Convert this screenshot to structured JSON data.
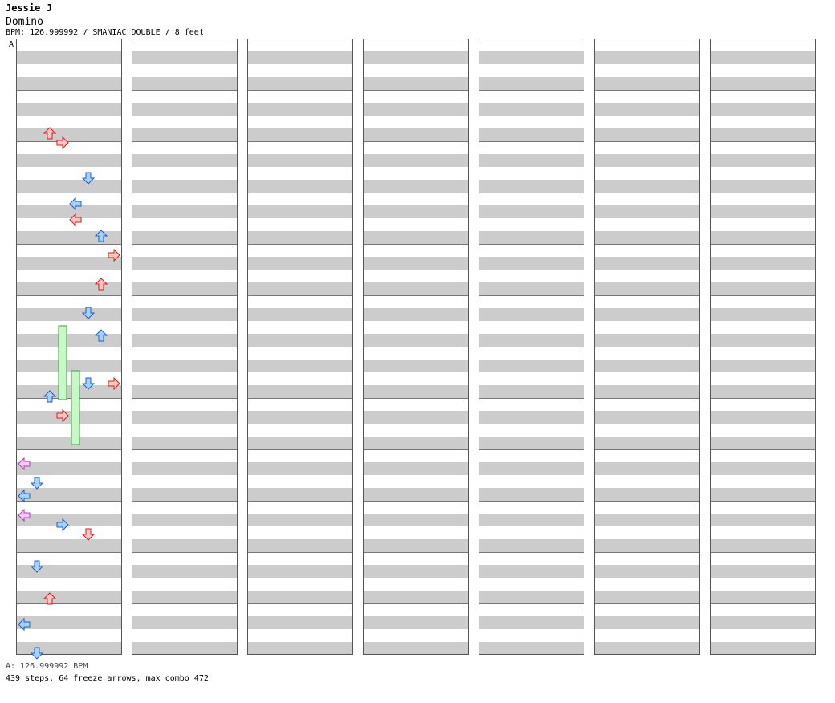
{
  "header": {
    "artist": "Jessie J",
    "title": "Domino",
    "info": "BPM: 126.999992 / SMANIAC DOUBLE / 8 feet"
  },
  "marker": {
    "label": "A"
  },
  "footer": {
    "bpm_line": "A: 126.999992 BPM",
    "stats_line": "439 steps, 64 freeze arrows, max combo 472"
  },
  "colors": {
    "stripe": "#cccccc",
    "border": "#555555",
    "red_fill": "#ffc4c4",
    "red_stroke": "#d21e1e",
    "blue_fill": "#a8d0fc",
    "blue_stroke": "#2060c0",
    "pink_fill": "#f8c8f8",
    "pink_stroke": "#b040b0",
    "freeze_fill": "#c8f8c8",
    "freeze_stroke": "#3c9e3c"
  },
  "chart": {
    "columns": 7,
    "measures_per_column": 12,
    "rows_per_measure": 16,
    "lanes": 8,
    "icon_names": [
      "left-arrow-icon",
      "down-arrow-icon",
      "up-arrow-icon",
      "right-arrow-icon"
    ],
    "notes": [
      [
        2,
        28,
        0
      ],
      [
        3,
        31,
        0
      ],
      [
        5,
        42,
        1
      ],
      [
        4,
        50,
        1
      ],
      [
        4,
        55,
        0
      ],
      [
        6,
        60,
        1
      ],
      [
        7,
        66,
        0
      ],
      [
        6,
        75,
        0
      ],
      [
        5,
        84,
        1
      ],
      [
        6,
        91,
        1
      ],
      [
        5,
        106,
        1
      ],
      [
        7,
        106,
        0
      ],
      [
        2,
        110,
        1
      ],
      [
        3,
        116,
        0
      ],
      [
        0,
        131,
        2
      ],
      [
        1,
        137,
        1
      ],
      [
        0,
        141,
        1
      ],
      [
        0,
        147,
        2
      ],
      [
        3,
        150,
        1
      ],
      [
        5,
        153,
        0
      ],
      [
        1,
        163,
        1
      ],
      [
        2,
        173,
        0
      ],
      [
        0,
        181,
        1
      ],
      [
        1,
        190,
        1
      ]
    ],
    "freezes": [
      [
        3,
        3,
        88,
        23
      ],
      [
        4,
        3,
        102,
        23
      ]
    ]
  }
}
